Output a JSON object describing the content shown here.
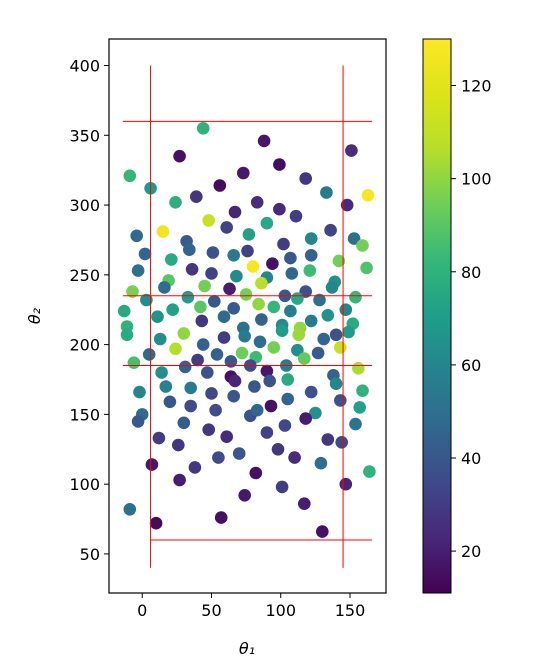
{
  "chart_data": {
    "type": "scatter",
    "xlabel": "θ₁",
    "ylabel": "θ₂",
    "xlim": [
      -24,
      176
    ],
    "ylim": [
      22,
      419
    ],
    "x_ticks": [
      0,
      50,
      100,
      150
    ],
    "y_ticks": [
      50,
      100,
      150,
      200,
      250,
      300,
      350,
      400
    ],
    "grid": false,
    "colormap": "viridis",
    "color_range": [
      11,
      130
    ],
    "colorbar_ticks": [
      20,
      40,
      60,
      80,
      100,
      120
    ],
    "reference_lines": {
      "color": "#ff0000",
      "vertical": [
        {
          "x": 6,
          "y_range": [
            40,
            400
          ]
        },
        {
          "x": 145,
          "y_range": [
            40,
            400
          ]
        }
      ],
      "horizontal": [
        {
          "y": 60,
          "x_range": [
            6,
            166
          ]
        },
        {
          "y": 185,
          "x_range": [
            -14,
            166
          ]
        },
        {
          "y": 235,
          "x_range": [
            -14,
            166
          ]
        },
        {
          "y": 360,
          "x_range": [
            -14,
            166
          ]
        }
      ]
    },
    "points": [
      {
        "x": 44,
        "y": 355,
        "c": 80
      },
      {
        "x": 88,
        "y": 346,
        "c": 18
      },
      {
        "x": 151,
        "y": 339,
        "c": 25
      },
      {
        "x": 27,
        "y": 335,
        "c": 16
      },
      {
        "x": 99,
        "y": 329,
        "c": 15
      },
      {
        "x": -9,
        "y": 321,
        "c": 82
      },
      {
        "x": 73,
        "y": 323,
        "c": 18
      },
      {
        "x": 118,
        "y": 319,
        "c": 28
      },
      {
        "x": 56,
        "y": 314,
        "c": 14
      },
      {
        "x": 6,
        "y": 312,
        "c": 68
      },
      {
        "x": 133,
        "y": 309,
        "c": 55
      },
      {
        "x": 163,
        "y": 307,
        "c": 128
      },
      {
        "x": 39,
        "y": 306,
        "c": 27
      },
      {
        "x": 83,
        "y": 302,
        "c": 25
      },
      {
        "x": 24,
        "y": 302,
        "c": 78
      },
      {
        "x": 148,
        "y": 300,
        "c": 24
      },
      {
        "x": 99,
        "y": 297,
        "c": 24
      },
      {
        "x": 67,
        "y": 295,
        "c": 22
      },
      {
        "x": 111,
        "y": 292,
        "c": 30
      },
      {
        "x": 48,
        "y": 289,
        "c": 112
      },
      {
        "x": 90,
        "y": 287,
        "c": 75
      },
      {
        "x": 61,
        "y": 284,
        "c": 32
      },
      {
        "x": 15,
        "y": 281,
        "c": 125
      },
      {
        "x": 77,
        "y": 279,
        "c": 72
      },
      {
        "x": -4,
        "y": 278,
        "c": 48
      },
      {
        "x": 122,
        "y": 276,
        "c": 60
      },
      {
        "x": 153,
        "y": 276,
        "c": 50
      },
      {
        "x": 32,
        "y": 274,
        "c": 42
      },
      {
        "x": 102,
        "y": 272,
        "c": 30
      },
      {
        "x": 159,
        "y": 271,
        "c": 95
      },
      {
        "x": 34,
        "y": 268,
        "c": 45
      },
      {
        "x": 76,
        "y": 267,
        "c": 32
      },
      {
        "x": 51,
        "y": 266,
        "c": 38
      },
      {
        "x": 2,
        "y": 265,
        "c": 45
      },
      {
        "x": 66,
        "y": 264,
        "c": 55
      },
      {
        "x": 122,
        "y": 264,
        "c": 45
      },
      {
        "x": 136,
        "y": 282,
        "c": 33
      },
      {
        "x": 107,
        "y": 262,
        "c": 40
      },
      {
        "x": 21,
        "y": 261,
        "c": 76
      },
      {
        "x": 142,
        "y": 260,
        "c": 95
      },
      {
        "x": 94,
        "y": 258,
        "c": 16
      },
      {
        "x": 80,
        "y": 256,
        "c": 128
      },
      {
        "x": 36,
        "y": 254,
        "c": 28
      },
      {
        "x": 162,
        "y": 255,
        "c": 88
      },
      {
        "x": -3,
        "y": 253,
        "c": 50
      },
      {
        "x": 121,
        "y": 253,
        "c": 84
      },
      {
        "x": 108,
        "y": 251,
        "c": 46
      },
      {
        "x": 50,
        "y": 251,
        "c": 32
      },
      {
        "x": 68,
        "y": 249,
        "c": 62
      },
      {
        "x": 90,
        "y": 248,
        "c": 60
      },
      {
        "x": 19,
        "y": 246,
        "c": 90
      },
      {
        "x": 139,
        "y": 245,
        "c": 65
      },
      {
        "x": 86,
        "y": 244,
        "c": 108
      },
      {
        "x": 45,
        "y": 242,
        "c": 95
      },
      {
        "x": 16,
        "y": 241,
        "c": 48
      },
      {
        "x": 137,
        "y": 241,
        "c": 60
      },
      {
        "x": 63,
        "y": 240,
        "c": 20
      },
      {
        "x": -7,
        "y": 238,
        "c": 96
      },
      {
        "x": 118,
        "y": 238,
        "c": 38
      },
      {
        "x": 75,
        "y": 236,
        "c": 95
      },
      {
        "x": 103,
        "y": 235,
        "c": 40
      },
      {
        "x": 154,
        "y": 234,
        "c": 82
      },
      {
        "x": 33,
        "y": 234,
        "c": 70
      },
      {
        "x": 112,
        "y": 233,
        "c": 75
      },
      {
        "x": 3,
        "y": 232,
        "c": 64
      },
      {
        "x": 128,
        "y": 232,
        "c": 50
      },
      {
        "x": 52,
        "y": 231,
        "c": 40
      },
      {
        "x": 84,
        "y": 229,
        "c": 100
      },
      {
        "x": 42,
        "y": 227,
        "c": 90
      },
      {
        "x": 95,
        "y": 227,
        "c": 82
      },
      {
        "x": 66,
        "y": 226,
        "c": 42
      },
      {
        "x": 22,
        "y": 225,
        "c": 72
      },
      {
        "x": 147,
        "y": 225,
        "c": 60
      },
      {
        "x": -13,
        "y": 224,
        "c": 76
      },
      {
        "x": 107,
        "y": 224,
        "c": 56
      },
      {
        "x": 134,
        "y": 221,
        "c": 66
      },
      {
        "x": 11,
        "y": 220,
        "c": 66
      },
      {
        "x": 59,
        "y": 220,
        "c": 48
      },
      {
        "x": 86,
        "y": 218,
        "c": 45
      },
      {
        "x": 122,
        "y": 217,
        "c": 55
      },
      {
        "x": 43,
        "y": 217,
        "c": 28
      },
      {
        "x": 152,
        "y": 215,
        "c": 76
      },
      {
        "x": 101,
        "y": 214,
        "c": 62
      },
      {
        "x": -11,
        "y": 213,
        "c": 80
      },
      {
        "x": 73,
        "y": 212,
        "c": 50
      },
      {
        "x": 114,
        "y": 212,
        "c": 100
      },
      {
        "x": 149,
        "y": 209,
        "c": 70
      },
      {
        "x": 30,
        "y": 208,
        "c": 100
      },
      {
        "x": 101,
        "y": 210,
        "c": 70
      },
      {
        "x": 140,
        "y": 207,
        "c": 38
      },
      {
        "x": -11,
        "y": 207,
        "c": 76
      },
      {
        "x": 74,
        "y": 206,
        "c": 55
      },
      {
        "x": 113,
        "y": 207,
        "c": 102
      },
      {
        "x": 59,
        "y": 205,
        "c": 30
      },
      {
        "x": 13,
        "y": 204,
        "c": 64
      },
      {
        "x": 131,
        "y": 204,
        "c": 46
      },
      {
        "x": 85,
        "y": 202,
        "c": 50
      },
      {
        "x": 44,
        "y": 200,
        "c": 44
      },
      {
        "x": 95,
        "y": 198,
        "c": 95
      },
      {
        "x": 143,
        "y": 198,
        "c": 112
      },
      {
        "x": 24,
        "y": 197,
        "c": 106
      },
      {
        "x": 112,
        "y": 196,
        "c": 64
      },
      {
        "x": 72,
        "y": 194,
        "c": 94
      },
      {
        "x": 127,
        "y": 194,
        "c": 42
      },
      {
        "x": 5,
        "y": 193,
        "c": 48
      },
      {
        "x": 54,
        "y": 193,
        "c": 44
      },
      {
        "x": 82,
        "y": 191,
        "c": 84
      },
      {
        "x": 40,
        "y": 189,
        "c": 30
      },
      {
        "x": 117,
        "y": 190,
        "c": 92
      },
      {
        "x": 64,
        "y": 188,
        "c": 40
      },
      {
        "x": -6,
        "y": 187,
        "c": 86
      },
      {
        "x": 104,
        "y": 185,
        "c": 56
      },
      {
        "x": 78,
        "y": 185,
        "c": 36
      },
      {
        "x": 31,
        "y": 184,
        "c": 44
      },
      {
        "x": 90,
        "y": 181,
        "c": 18
      },
      {
        "x": 14,
        "y": 180,
        "c": 64
      },
      {
        "x": 47,
        "y": 180,
        "c": 38
      },
      {
        "x": 156,
        "y": 183,
        "c": 104
      },
      {
        "x": 64,
        "y": 177,
        "c": 16
      },
      {
        "x": 138,
        "y": 178,
        "c": 44
      },
      {
        "x": 105,
        "y": 175,
        "c": 76
      },
      {
        "x": 67,
        "y": 174,
        "c": 22
      },
      {
        "x": 92,
        "y": 174,
        "c": 38
      },
      {
        "x": 17,
        "y": 170,
        "c": 58
      },
      {
        "x": 81,
        "y": 170,
        "c": 40
      },
      {
        "x": 140,
        "y": 172,
        "c": 60
      },
      {
        "x": 35,
        "y": 169,
        "c": 55
      },
      {
        "x": 122,
        "y": 166,
        "c": 38
      },
      {
        "x": 159,
        "y": 167,
        "c": 80
      },
      {
        "x": 50,
        "y": 165,
        "c": 34
      },
      {
        "x": -2,
        "y": 166,
        "c": 60
      },
      {
        "x": 66,
        "y": 163,
        "c": 40
      },
      {
        "x": 143,
        "y": 160,
        "c": 38
      },
      {
        "x": 105,
        "y": 161,
        "c": 46
      },
      {
        "x": 20,
        "y": 159,
        "c": 40
      },
      {
        "x": 35,
        "y": 156,
        "c": 36
      },
      {
        "x": 93,
        "y": 156,
        "c": 16
      },
      {
        "x": 157,
        "y": 155,
        "c": 72
      },
      {
        "x": 53,
        "y": 153,
        "c": 36
      },
      {
        "x": 125,
        "y": 151,
        "c": 66
      },
      {
        "x": 0,
        "y": 150,
        "c": 48
      },
      {
        "x": 78,
        "y": 149,
        "c": 38
      },
      {
        "x": 83,
        "y": 153,
        "c": 46
      },
      {
        "x": 118,
        "y": 147,
        "c": 20
      },
      {
        "x": -3,
        "y": 145,
        "c": 40
      },
      {
        "x": 30,
        "y": 144,
        "c": 42
      },
      {
        "x": 154,
        "y": 143,
        "c": 52
      },
      {
        "x": 103,
        "y": 142,
        "c": 34
      },
      {
        "x": 48,
        "y": 139,
        "c": 28
      },
      {
        "x": 90,
        "y": 137,
        "c": 32
      },
      {
        "x": 61,
        "y": 134,
        "c": 24
      },
      {
        "x": 12,
        "y": 133,
        "c": 30
      },
      {
        "x": 134,
        "y": 132,
        "c": 28
      },
      {
        "x": 144,
        "y": 130,
        "c": 34
      },
      {
        "x": 26,
        "y": 128,
        "c": 28
      },
      {
        "x": 98,
        "y": 125,
        "c": 28
      },
      {
        "x": 70,
        "y": 122,
        "c": 40
      },
      {
        "x": 55,
        "y": 119,
        "c": 36
      },
      {
        "x": 110,
        "y": 119,
        "c": 24
      },
      {
        "x": 129,
        "y": 115,
        "c": 50
      },
      {
        "x": 7,
        "y": 114,
        "c": 18
      },
      {
        "x": 38,
        "y": 112,
        "c": 28
      },
      {
        "x": 164,
        "y": 109,
        "c": 80
      },
      {
        "x": 82,
        "y": 108,
        "c": 16
      },
      {
        "x": 27,
        "y": 103,
        "c": 20
      },
      {
        "x": 147,
        "y": 100,
        "c": 22
      },
      {
        "x": 101,
        "y": 98,
        "c": 30
      },
      {
        "x": 74,
        "y": 92,
        "c": 18
      },
      {
        "x": 117,
        "y": 86,
        "c": 20
      },
      {
        "x": -9,
        "y": 82,
        "c": 50
      },
      {
        "x": 57,
        "y": 76,
        "c": 16
      },
      {
        "x": 10,
        "y": 72,
        "c": 14
      },
      {
        "x": 130,
        "y": 66,
        "c": 16
      }
    ]
  }
}
